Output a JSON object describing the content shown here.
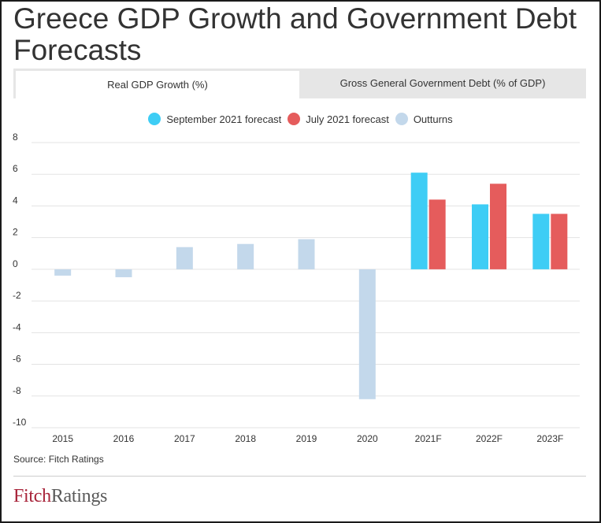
{
  "header": {
    "title": "Greece GDP Growth and Government Debt Forecasts"
  },
  "tabs": [
    {
      "label": "Real GDP Growth (%)",
      "active": true
    },
    {
      "label": "Gross General Government Debt (% of GDP)",
      "active": false
    }
  ],
  "legend": [
    {
      "label": "September 2021 forecast",
      "color": "#3ecdf5"
    },
    {
      "label": "July 2021 forecast",
      "color": "#e55c5c"
    },
    {
      "label": "Outturns",
      "color": "#c3d8eb"
    }
  ],
  "chart_data": {
    "type": "bar",
    "categories": [
      "2015",
      "2016",
      "2017",
      "2018",
      "2019",
      "2020",
      "2021F",
      "2022F",
      "2023F"
    ],
    "series": [
      {
        "name": "September 2021 forecast",
        "color": "#3ecdf5",
        "values": [
          null,
          null,
          null,
          null,
          null,
          null,
          6.1,
          4.1,
          3.5
        ]
      },
      {
        "name": "July 2021 forecast",
        "color": "#e55c5c",
        "values": [
          null,
          null,
          null,
          null,
          null,
          null,
          4.4,
          5.4,
          3.5
        ]
      },
      {
        "name": "Outturns",
        "color": "#c3d8eb",
        "values": [
          -0.4,
          -0.5,
          1.4,
          1.6,
          1.9,
          -8.2,
          null,
          null,
          null
        ]
      }
    ],
    "yticks": [
      "8",
      "6",
      "4",
      "2",
      "0",
      "-2",
      "-4",
      "-6",
      "-8",
      "-10"
    ],
    "ylim": [
      -10,
      8
    ],
    "grid": true,
    "legend_position": "top-center"
  },
  "footer": {
    "source": "Source: Fitch Ratings",
    "logo_part1": "Fitch",
    "logo_part2": "Ratings"
  }
}
